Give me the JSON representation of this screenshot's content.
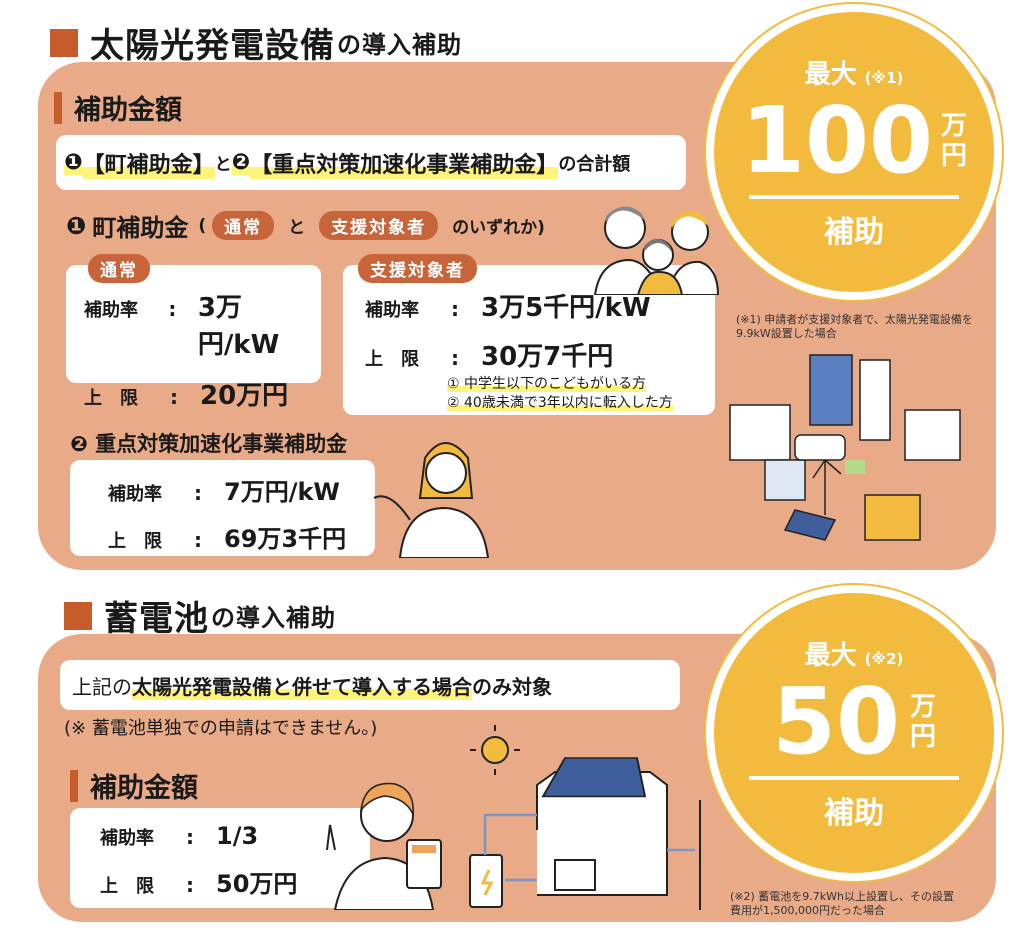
{
  "solar": {
    "title_main": "太陽光発電設備",
    "title_suffix": "の導入補助",
    "subhead": "補助金額",
    "total_line": {
      "n1": "❶",
      "p1": "【町補助金】",
      "and": "と",
      "n2": "❷",
      "p2": "【重点対策加速化事業補助金】",
      "tail": "の合計額"
    },
    "town": {
      "heading_num": "❶",
      "heading": "町補助金",
      "paren_open": "(",
      "pill_normal": "通常",
      "and": "と",
      "pill_support": "支援対象者",
      "tail": "のいずれか)",
      "normal": {
        "label": "通常",
        "rate_key": "補助率",
        "rate": "3万円/kW",
        "limit_key": "上　限",
        "limit": "20万円"
      },
      "support": {
        "label": "支援対象者",
        "rate_key": "補助率",
        "rate": "3万5千円/kW",
        "limit_key": "上　限",
        "limit": "30万7千円",
        "conditions": [
          "① 中学生以下のこどもがいる方",
          "② 40歳未満で3年以内に転入した方"
        ]
      }
    },
    "priority": {
      "heading": "❷ 重点対策加速化事業補助金",
      "rate_key": "補助率",
      "rate": "7万円/kW",
      "limit_key": "上　限",
      "limit": "69万3千円"
    },
    "badge": {
      "top": "最大",
      "ref": "(※1)",
      "amount": "100",
      "unit1": "万",
      "unit2": "円",
      "bottom": "補助"
    },
    "note": "(※1) 申請者が支援対象者で、太陽光発電設備を\n9.9kW設置した場合"
  },
  "battery": {
    "title_main": "蓄電池",
    "title_suffix": "の導入補助",
    "condition_pre": "上記の",
    "condition_hl": "太陽光発電設備と併せて導入する場合",
    "condition_post": "のみ対象",
    "caution": "(※ 蓄電池単独での申請はできません。)",
    "subhead": "補助金額",
    "rate_key": "補助率",
    "rate": "1/3",
    "limit_key": "上　限",
    "limit": "50万円",
    "badge": {
      "top": "最大",
      "ref": "(※2)",
      "amount": "50",
      "unit1": "万",
      "unit2": "円",
      "bottom": "補助"
    },
    "note": "(※2) 蓄電池を9.7kWh以上設置し、その設置\n費用が1,500,000円だった場合"
  },
  "colors": {
    "accent": "#c65b2c",
    "panel": "#e9aa88",
    "badge": "#f2bb3e",
    "highlight": "#fff47a"
  }
}
